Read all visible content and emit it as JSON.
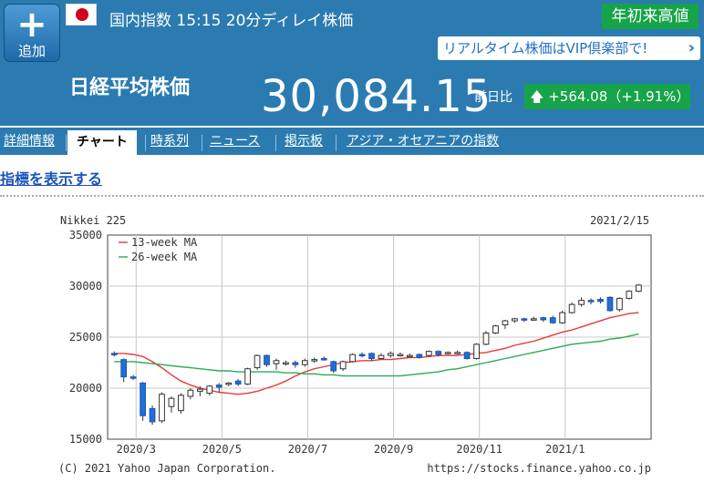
{
  "header": {
    "add_label": "追加",
    "market_line": "国内指数  15:15  20分ディレイ株価",
    "ytd_badge": "年初来高値",
    "vip_link": "リアルタイム株価はVIP倶楽部で!",
    "index_name": "日経平均株価",
    "price": "30,084.15",
    "prev_label": "前日比",
    "change": "+564.08（+1.91%）",
    "icons": {
      "add": "plus-icon",
      "flag": "japan-flag-icon",
      "vip": "chevron-right-icon",
      "change": "arrow-up-icon"
    }
  },
  "tabs": [
    {
      "label": "詳細情報",
      "active": false
    },
    {
      "label": "チャート",
      "active": true
    },
    {
      "label": "時系列",
      "active": false
    },
    {
      "label": "ニュース",
      "active": false
    },
    {
      "label": "掲示板",
      "active": false
    },
    {
      "label": "アジア・オセアニアの指数",
      "active": false
    }
  ],
  "indicator_link": "指標を表示する",
  "colors": {
    "header_bg": "#2b7bb1",
    "badge_green": "#16a34a",
    "ma13": "#e8393a",
    "ma26": "#2eaa55",
    "down": "#1f6fd6"
  },
  "chart_data": {
    "type": "candlestick",
    "title": "Nikkei 225",
    "date": "2021/2/15",
    "footer_left": "(C) 2021 Yahoo Japan Corporation.",
    "footer_right": "https://stocks.finance.yahoo.co.jp",
    "ylim": [
      15000,
      35000
    ],
    "yticks": [
      "35000",
      "30000",
      "25000",
      "20000",
      "15000"
    ],
    "xticks": [
      "2020/3",
      "2020/5",
      "2020/7",
      "2020/9",
      "2020/11",
      "2021/1"
    ],
    "legend": [
      {
        "name": "13-week MA",
        "color": "#e8393a"
      },
      {
        "name": "26-week MA",
        "color": "#2eaa55"
      }
    ],
    "candles": [
      {
        "o": 23400,
        "c": 23300,
        "h": 23600,
        "l": 23100
      },
      {
        "o": 22800,
        "c": 21100,
        "h": 22900,
        "l": 20600
      },
      {
        "o": 21100,
        "c": 21000,
        "h": 21300,
        "l": 20800
      },
      {
        "o": 20500,
        "c": 17300,
        "h": 20600,
        "l": 16800
      },
      {
        "o": 18000,
        "c": 16700,
        "h": 18300,
        "l": 16400
      },
      {
        "o": 16800,
        "c": 19400,
        "h": 19600,
        "l": 16600
      },
      {
        "o": 18200,
        "c": 19000,
        "h": 19200,
        "l": 17600
      },
      {
        "o": 17800,
        "c": 19300,
        "h": 19500,
        "l": 17500
      },
      {
        "o": 19200,
        "c": 19800,
        "h": 20000,
        "l": 18900
      },
      {
        "o": 19700,
        "c": 19900,
        "h": 20200,
        "l": 19200
      },
      {
        "o": 19500,
        "c": 20200,
        "h": 20300,
        "l": 19300
      },
      {
        "o": 20300,
        "c": 20100,
        "h": 20500,
        "l": 19600
      },
      {
        "o": 20400,
        "c": 20500,
        "h": 20600,
        "l": 20200
      },
      {
        "o": 20700,
        "c": 20400,
        "h": 20900,
        "l": 20200
      },
      {
        "o": 20400,
        "c": 21900,
        "h": 22000,
        "l": 20300
      },
      {
        "o": 22000,
        "c": 23200,
        "h": 23300,
        "l": 21800
      },
      {
        "o": 23200,
        "c": 22300,
        "h": 23300,
        "l": 22100
      },
      {
        "o": 22400,
        "c": 22700,
        "h": 22900,
        "l": 21800
      },
      {
        "o": 22500,
        "c": 22500,
        "h": 22700,
        "l": 22200
      },
      {
        "o": 22500,
        "c": 22300,
        "h": 22700,
        "l": 22000
      },
      {
        "o": 22300,
        "c": 22700,
        "h": 22900,
        "l": 22100
      },
      {
        "o": 22800,
        "c": 22800,
        "h": 23000,
        "l": 22500
      },
      {
        "o": 22900,
        "c": 22800,
        "h": 23100,
        "l": 22700
      },
      {
        "o": 22600,
        "c": 21700,
        "h": 22700,
        "l": 21500
      },
      {
        "o": 21900,
        "c": 22600,
        "h": 22700,
        "l": 21700
      },
      {
        "o": 22600,
        "c": 23300,
        "h": 23400,
        "l": 22500
      },
      {
        "o": 23300,
        "c": 23200,
        "h": 23500,
        "l": 23000
      },
      {
        "o": 23400,
        "c": 22900,
        "h": 23500,
        "l": 22700
      },
      {
        "o": 22900,
        "c": 23200,
        "h": 23400,
        "l": 22800
      },
      {
        "o": 23200,
        "c": 23400,
        "h": 23600,
        "l": 23000
      },
      {
        "o": 23300,
        "c": 23300,
        "h": 23500,
        "l": 23100
      },
      {
        "o": 23200,
        "c": 23200,
        "h": 23400,
        "l": 23000
      },
      {
        "o": 23300,
        "c": 23000,
        "h": 23400,
        "l": 22900
      },
      {
        "o": 23200,
        "c": 23600,
        "h": 23700,
        "l": 23100
      },
      {
        "o": 23600,
        "c": 23300,
        "h": 23700,
        "l": 23100
      },
      {
        "o": 23500,
        "c": 23500,
        "h": 23600,
        "l": 23300
      },
      {
        "o": 23500,
        "c": 23500,
        "h": 23700,
        "l": 23300
      },
      {
        "o": 23500,
        "c": 22900,
        "h": 23600,
        "l": 22800
      },
      {
        "o": 22900,
        "c": 24300,
        "h": 24400,
        "l": 22800
      },
      {
        "o": 24300,
        "c": 25400,
        "h": 25600,
        "l": 24200
      },
      {
        "o": 25400,
        "c": 26100,
        "h": 26200,
        "l": 25300
      },
      {
        "o": 26200,
        "c": 26600,
        "h": 26700,
        "l": 25800
      },
      {
        "o": 26600,
        "c": 26800,
        "h": 26900,
        "l": 26400
      },
      {
        "o": 26800,
        "c": 26700,
        "h": 26900,
        "l": 26500
      },
      {
        "o": 26800,
        "c": 26800,
        "h": 27000,
        "l": 26600
      },
      {
        "o": 26900,
        "c": 26700,
        "h": 27000,
        "l": 26500
      },
      {
        "o": 26900,
        "c": 26400,
        "h": 27100,
        "l": 26300
      },
      {
        "o": 26400,
        "c": 27400,
        "h": 27600,
        "l": 26300
      },
      {
        "o": 27400,
        "c": 28200,
        "h": 28400,
        "l": 27300
      },
      {
        "o": 28200,
        "c": 28600,
        "h": 28900,
        "l": 28000
      },
      {
        "o": 28600,
        "c": 28500,
        "h": 28800,
        "l": 28200
      },
      {
        "o": 28700,
        "c": 28500,
        "h": 28900,
        "l": 28300
      },
      {
        "o": 28900,
        "c": 27600,
        "h": 29000,
        "l": 27500
      },
      {
        "o": 27700,
        "c": 28800,
        "h": 28900,
        "l": 27500
      },
      {
        "o": 28800,
        "c": 29500,
        "h": 29600,
        "l": 28700
      },
      {
        "o": 29500,
        "c": 30100,
        "h": 30200,
        "l": 29400
      }
    ],
    "series": [
      {
        "name": "13-week MA",
        "values": [
          23400,
          23400,
          23300,
          23100,
          22600,
          22000,
          21300,
          20700,
          20300,
          20000,
          19800,
          19600,
          19500,
          19400,
          19500,
          19700,
          20000,
          20300,
          20700,
          21200,
          21600,
          21900,
          22100,
          22300,
          22500,
          22600,
          22700,
          22700,
          22800,
          22800,
          22900,
          23000,
          23000,
          23100,
          23200,
          23200,
          23200,
          23300,
          23400,
          23500,
          23700,
          23900,
          24200,
          24400,
          24600,
          24900,
          25200,
          25500,
          25700,
          26000,
          26300,
          26600,
          26900,
          27100,
          27300,
          27400
        ]
      },
      {
        "name": "26-week MA",
        "values": [
          22600,
          22600,
          22600,
          22500,
          22400,
          22300,
          22200,
          22100,
          22000,
          21900,
          21800,
          21700,
          21700,
          21600,
          21600,
          21600,
          21600,
          21600,
          21500,
          21500,
          21400,
          21400,
          21300,
          21300,
          21200,
          21200,
          21200,
          21200,
          21200,
          21200,
          21200,
          21300,
          21400,
          21500,
          21600,
          21800,
          21900,
          22100,
          22300,
          22500,
          22700,
          22900,
          23100,
          23300,
          23500,
          23700,
          23900,
          24100,
          24300,
          24400,
          24500,
          24600,
          24800,
          24900,
          25100,
          25300
        ]
      }
    ]
  }
}
